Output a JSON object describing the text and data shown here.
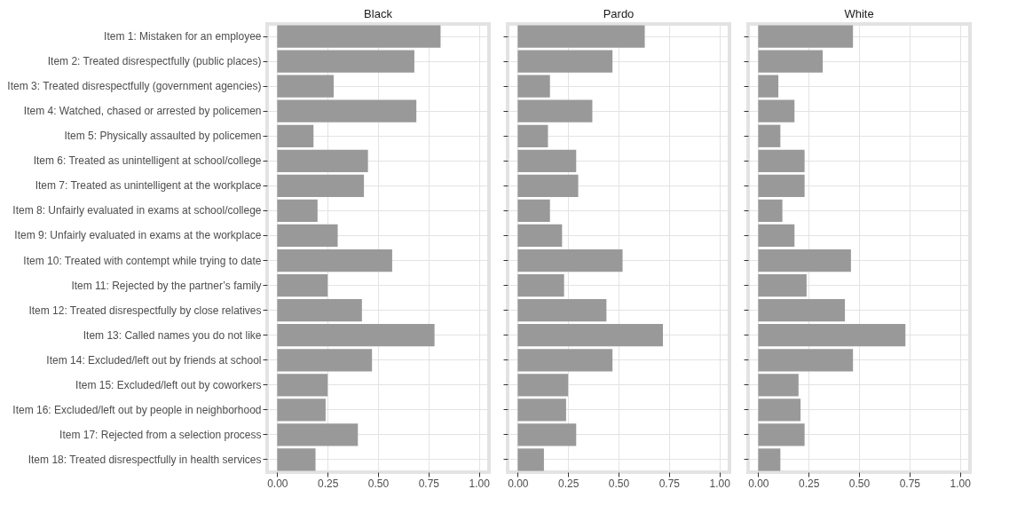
{
  "chart_data": [
    {
      "type": "bar",
      "orientation": "horizontal",
      "title": "Black",
      "color": "#999999",
      "grid": true,
      "categories": [
        "Item 1: Mistaken for an employee",
        "Item 2: Treated disrespectfully (public places)",
        "Item 3: Treated disrespectfully (government agencies)",
        "Item 4: Watched, chased or arrested by policemen",
        "Item 5: Physically assaulted by policemen",
        "Item 6: Treated as unintelligent at school/college",
        "Item 7: Treated as unintelligent at the workplace",
        "Item 8: Unfairly evaluated in exams at school/college",
        "Item 9: Unfairly evaluated in exams at the workplace",
        "Item 10: Treated with contempt while trying to date",
        "Item 11: Rejected by the partner’s family",
        "Item 12: Treated disrespectfully by close relatives",
        "Item 13: Called names you do not like",
        "Item 14: Excluded/left out by friends at school",
        "Item 15: Excluded/left out by coworkers",
        "Item 16: Excluded/left out by people in neighborhood",
        "Item 17: Rejected from a selection process",
        "Item 18: Treated disrespectfully in health services"
      ],
      "values": [
        0.81,
        0.68,
        0.28,
        0.69,
        0.18,
        0.45,
        0.43,
        0.2,
        0.3,
        0.57,
        0.25,
        0.42,
        0.78,
        0.47,
        0.25,
        0.24,
        0.4,
        0.19
      ],
      "xlim": [
        -0.05,
        1.05
      ],
      "xticks": [
        {
          "value": 0,
          "label": "0.00"
        },
        {
          "value": 0.25,
          "label": "0.25"
        },
        {
          "value": 0.5,
          "label": "0.50"
        },
        {
          "value": 0.75,
          "label": "0.75"
        },
        {
          "value": 1,
          "label": "1.00"
        }
      ]
    },
    {
      "type": "bar",
      "orientation": "horizontal",
      "title": "Pardo",
      "color": "#999999",
      "grid": true,
      "tick_labels": "x",
      "values": [
        0.63,
        0.47,
        0.16,
        0.37,
        0.15,
        0.29,
        0.3,
        0.16,
        0.22,
        0.52,
        0.23,
        0.44,
        0.72,
        0.47,
        0.25,
        0.24,
        0.29,
        0.13
      ],
      "xlim": [
        -0.05,
        1.05
      ],
      "xticks": [
        {
          "value": 0,
          "label": "0.00"
        },
        {
          "value": 0.25,
          "label": "0.25"
        },
        {
          "value": 0.5,
          "label": "0.50"
        },
        {
          "value": 0.75,
          "label": "0.75"
        },
        {
          "value": 1,
          "label": "1.00"
        }
      ]
    },
    {
      "type": "bar",
      "orientation": "horizontal",
      "title": "White",
      "color": "#999999",
      "grid": true,
      "tick_labels": "x",
      "values": [
        0.47,
        0.32,
        0.1,
        0.18,
        0.11,
        0.23,
        0.23,
        0.12,
        0.18,
        0.46,
        0.24,
        0.43,
        0.73,
        0.47,
        0.2,
        0.21,
        0.23,
        0.11
      ],
      "xlim": [
        -0.05,
        1.05
      ],
      "xticks": [
        {
          "value": 0,
          "label": "0.00"
        },
        {
          "value": 0.25,
          "label": "0.25"
        },
        {
          "value": 0.5,
          "label": "0.50"
        },
        {
          "value": 0.75,
          "label": "0.75"
        },
        {
          "value": 1,
          "label": "1.00"
        }
      ]
    }
  ]
}
